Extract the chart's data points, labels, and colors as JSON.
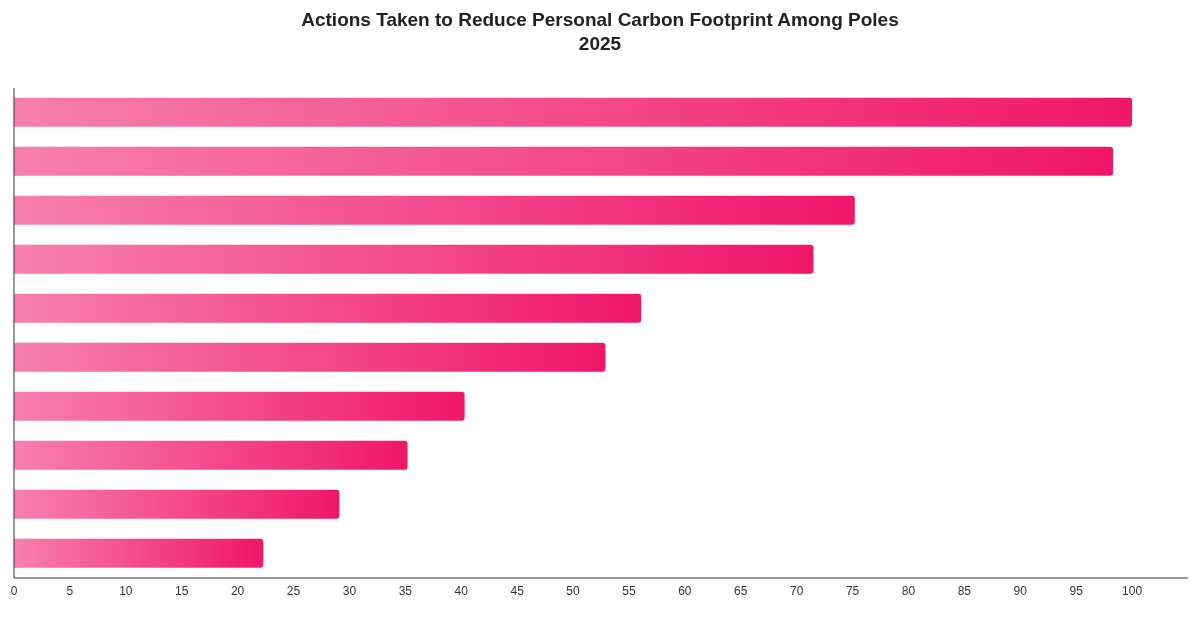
{
  "chart_data": {
    "type": "bar",
    "orientation": "horizontal",
    "title": "Actions Taken to Reduce Personal Carbon Footprint Among Poles 2025",
    "categories": [
      null,
      null,
      null,
      null,
      null,
      null,
      null,
      null,
      null,
      null
    ],
    "values": [
      100,
      98.3,
      75.2,
      71.5,
      56.1,
      52.9,
      40.3,
      35.2,
      29.1,
      22.3
    ],
    "color": "#f0166a",
    "xlim": [
      0,
      105
    ],
    "xticks": [
      0,
      5,
      10,
      15,
      20,
      25,
      30,
      35,
      40,
      45,
      50,
      55,
      60,
      65,
      70,
      75,
      80,
      85,
      90,
      95,
      100
    ],
    "grid": false
  }
}
